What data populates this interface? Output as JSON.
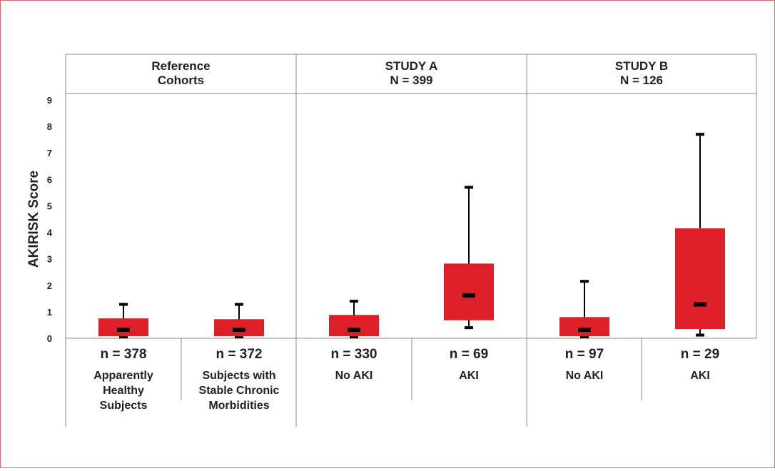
{
  "chart_data": {
    "type": "box",
    "ylabel": "AKIRISK Score",
    "ylim": [
      0,
      9
    ],
    "yticks": [
      0,
      1,
      2,
      3,
      4,
      5,
      6,
      7,
      8,
      9
    ],
    "accent_color": "#dd2027",
    "groups": [
      {
        "header": [
          "Reference",
          "Cohorts"
        ]
      },
      {
        "header": [
          "STUDY A",
          "N = 399"
        ]
      },
      {
        "header": [
          "STUDY B",
          "N = 126"
        ]
      }
    ],
    "boxes": [
      {
        "count": "n = 378",
        "label": [
          "Apparently",
          "Healthy",
          "Subjects"
        ],
        "whisker_low": 0.05,
        "q1": 0.08,
        "median": 0.32,
        "q3": 0.75,
        "whisker_high": 1.28
      },
      {
        "count": "n = 372",
        "label": [
          "Subjects with",
          "Stable Chronic",
          "Morbidities"
        ],
        "whisker_low": 0.05,
        "q1": 0.08,
        "median": 0.32,
        "q3": 0.72,
        "whisker_high": 1.28
      },
      {
        "count": "n = 330",
        "label": [
          "No AKI"
        ],
        "whisker_low": 0.05,
        "q1": 0.08,
        "median": 0.32,
        "q3": 0.88,
        "whisker_high": 1.4
      },
      {
        "count": "n = 69",
        "label": [
          "AKI"
        ],
        "whisker_low": 0.4,
        "q1": 0.68,
        "median": 1.62,
        "q3": 2.82,
        "whisker_high": 5.7
      },
      {
        "count": "n = 97",
        "label": [
          "No AKI"
        ],
        "whisker_low": 0.05,
        "q1": 0.08,
        "median": 0.32,
        "q3": 0.8,
        "whisker_high": 2.15
      },
      {
        "count": "n = 29",
        "label": [
          "AKI"
        ],
        "whisker_low": 0.12,
        "q1": 0.35,
        "median": 1.28,
        "q3": 4.15,
        "whisker_high": 7.7
      }
    ]
  }
}
